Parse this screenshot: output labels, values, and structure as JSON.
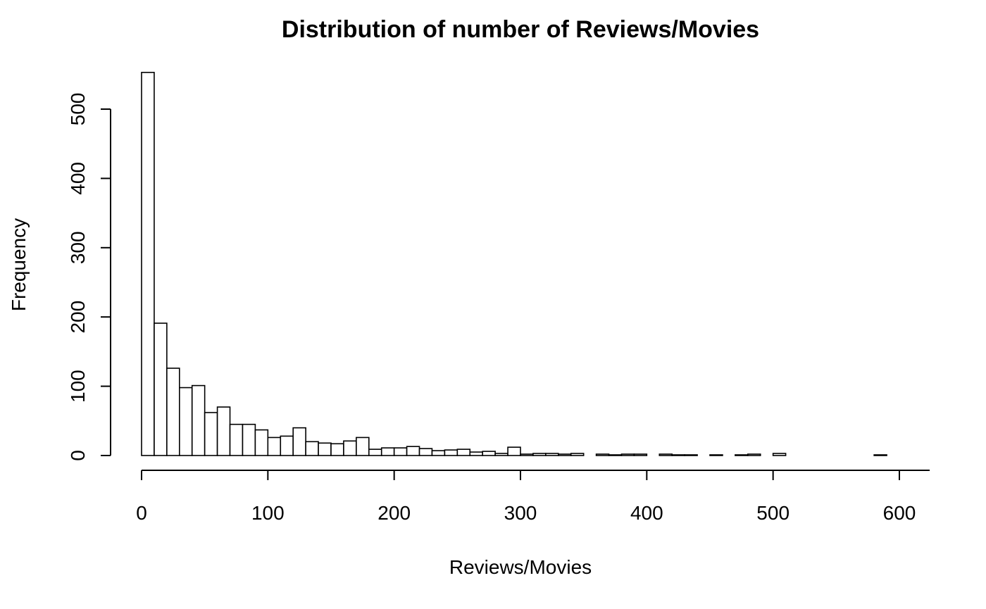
{
  "chart_data": {
    "type": "bar",
    "title": "Distribution of number of Reviews/Movies",
    "xlabel": "Reviews/Movies",
    "ylabel": "Frequency",
    "xlim": [
      0,
      600
    ],
    "ylim": [
      0,
      560
    ],
    "x_ticks": [
      0,
      100,
      200,
      300,
      400,
      500,
      600
    ],
    "y_ticks": [
      0,
      100,
      200,
      300,
      400,
      500
    ],
    "bin_width": 10,
    "bin_starts": [
      0,
      10,
      20,
      30,
      40,
      50,
      60,
      70,
      80,
      90,
      100,
      110,
      120,
      130,
      140,
      150,
      160,
      170,
      180,
      190,
      200,
      210,
      220,
      230,
      240,
      250,
      260,
      270,
      280,
      290,
      300,
      310,
      320,
      330,
      340,
      350,
      360,
      370,
      380,
      390,
      400,
      410,
      420,
      430,
      440,
      450,
      460,
      470,
      480,
      490,
      500,
      510,
      520,
      530,
      540,
      550,
      560,
      570,
      580
    ],
    "values": [
      553,
      191,
      126,
      98,
      101,
      62,
      70,
      45,
      45,
      37,
      26,
      28,
      40,
      20,
      18,
      17,
      21,
      26,
      9,
      11,
      11,
      13,
      10,
      7,
      8,
      9,
      5,
      6,
      3,
      12,
      2,
      3,
      3,
      2,
      3,
      0,
      2,
      1,
      2,
      2,
      0,
      2,
      1,
      1,
      0,
      1,
      0,
      1,
      2,
      0,
      3,
      0,
      0,
      0,
      0,
      0,
      0,
      0,
      1
    ],
    "grid": false,
    "legend": "none"
  }
}
